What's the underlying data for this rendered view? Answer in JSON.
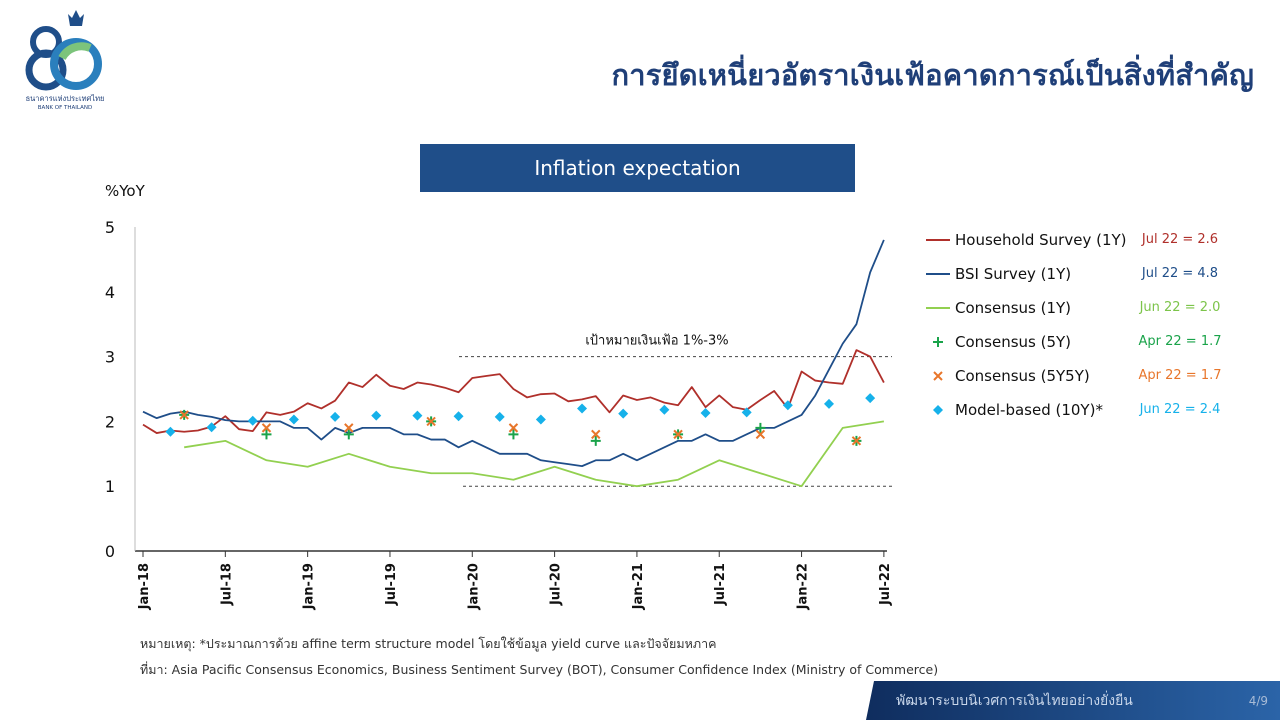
{
  "header": {
    "title": "การยึดเหนี่ยวอัตราเงินเฟ้อคาดการณ์เป็นสิ่งที่สำคัญ",
    "logo_text_th": "ธนาคารแห่งประเทศไทย",
    "logo_text_en": "BANK OF THAILAND"
  },
  "chart_title": "Inflation expectation",
  "chart_data": {
    "type": "line",
    "ylabel": "%YoY",
    "ylim": [
      0,
      5
    ],
    "yticks": [
      0,
      1,
      2,
      3,
      4,
      5
    ],
    "x_tick_labels": [
      "Jan-18",
      "Jul-18",
      "Jan-19",
      "Jul-19",
      "Jan-20",
      "Jul-20",
      "Jan-21",
      "Jul-21",
      "Jan-22",
      "Jul-22"
    ],
    "target_band_label": "เป้าหมายเงินเฟ้อ 1%-3%",
    "target_band": [
      1,
      3
    ],
    "series": [
      {
        "name": "Household Survey (1Y)",
        "kind": "line",
        "color": "#b0302b",
        "annotation": "Jul 22 = 2.6",
        "start_month": 0,
        "values": [
          1.95,
          1.82,
          1.86,
          1.84,
          1.86,
          1.92,
          2.08,
          1.88,
          1.85,
          2.14,
          2.1,
          2.15,
          2.28,
          2.2,
          2.32,
          2.6,
          2.53,
          2.72,
          2.55,
          2.5,
          2.6,
          2.57,
          2.52,
          2.45,
          2.67,
          2.7,
          2.73,
          2.5,
          2.37,
          2.42,
          2.43,
          2.31,
          2.34,
          2.39,
          2.14,
          2.4,
          2.33,
          2.37,
          2.29,
          2.25,
          2.53,
          2.22,
          2.4,
          2.22,
          2.18,
          2.33,
          2.47,
          2.2,
          2.77,
          2.63,
          2.6,
          2.58,
          3.1,
          3.0,
          2.6
        ]
      },
      {
        "name": "BSI Survey (1Y)",
        "kind": "line",
        "color": "#1f4e89",
        "annotation": "Jul 22 = 4.8",
        "start_month": 0,
        "values": [
          2.15,
          2.05,
          2.12,
          2.15,
          2.1,
          2.07,
          2.02,
          2.0,
          2.0,
          2.0,
          2.0,
          1.9,
          1.9,
          1.72,
          1.9,
          1.82,
          1.9,
          1.9,
          1.9,
          1.8,
          1.8,
          1.72,
          1.72,
          1.6,
          1.7,
          1.6,
          1.5,
          1.5,
          1.5,
          1.4,
          1.37,
          1.34,
          1.31,
          1.4,
          1.4,
          1.5,
          1.4,
          1.5,
          1.6,
          1.7,
          1.7,
          1.8,
          1.7,
          1.7,
          1.8,
          1.9,
          1.9,
          2.0,
          2.1,
          2.4,
          2.8,
          3.2,
          3.5,
          4.3,
          4.8
        ]
      },
      {
        "name": "Consensus (1Y)",
        "kind": "line",
        "color": "#92d050",
        "annotation": "Jun 22 = 2.0",
        "points": [
          [
            3,
            1.6
          ],
          [
            6,
            1.7
          ],
          [
            9,
            1.4
          ],
          [
            12,
            1.3
          ],
          [
            15,
            1.5
          ],
          [
            18,
            1.3
          ],
          [
            21,
            1.2
          ],
          [
            24,
            1.2
          ],
          [
            27,
            1.1
          ],
          [
            30,
            1.3
          ],
          [
            33,
            1.1
          ],
          [
            36,
            1.0
          ],
          [
            39,
            1.1
          ],
          [
            42,
            1.4
          ],
          [
            45,
            1.2
          ],
          [
            48,
            1.0
          ],
          [
            51,
            1.9
          ],
          [
            54,
            2.0
          ]
        ]
      },
      {
        "name": "Consensus (5Y)",
        "kind": "plus",
        "color": "#1aa34a",
        "annotation": "Apr 22 = 1.7",
        "points": [
          [
            3,
            2.1
          ],
          [
            9,
            1.8
          ],
          [
            15,
            1.8
          ],
          [
            21,
            2.0
          ],
          [
            27,
            1.8
          ],
          [
            33,
            1.7
          ],
          [
            39,
            1.8
          ],
          [
            45,
            1.9
          ],
          [
            52,
            1.7
          ]
        ]
      },
      {
        "name": "Consensus (5Y5Y)",
        "kind": "cross",
        "color": "#e8762b",
        "annotation": "Apr 22 = 1.7",
        "points": [
          [
            3,
            2.1
          ],
          [
            9,
            1.9
          ],
          [
            15,
            1.9
          ],
          [
            21,
            2.0
          ],
          [
            27,
            1.9
          ],
          [
            33,
            1.8
          ],
          [
            39,
            1.8
          ],
          [
            45,
            1.8
          ],
          [
            52,
            1.7
          ]
        ]
      },
      {
        "name": "Model-based (10Y)*",
        "kind": "diamond",
        "color": "#16b1ea",
        "annotation": "Jun 22 = 2.4",
        "points": [
          [
            2,
            1.84
          ],
          [
            5,
            1.91
          ],
          [
            8,
            2.01
          ],
          [
            11,
            2.03
          ],
          [
            14,
            2.07
          ],
          [
            17,
            2.09
          ],
          [
            20,
            2.09
          ],
          [
            23,
            2.08
          ],
          [
            26,
            2.07
          ],
          [
            29,
            2.03
          ],
          [
            32,
            2.2
          ],
          [
            35,
            2.12
          ],
          [
            38,
            2.18
          ],
          [
            41,
            2.13
          ],
          [
            44,
            2.14
          ],
          [
            47,
            2.25
          ],
          [
            50,
            2.27
          ],
          [
            53,
            2.36
          ]
        ]
      }
    ]
  },
  "notes": {
    "remark": "หมายเหตุ: *ประมาณการด้วย affine term structure model โดยใช้ข้อมูล yield curve และปัจจัยมหภาค",
    "source": "ที่มา: Asia Pacific Consensus Economics, Business Sentiment Survey (BOT), Consumer Confidence Index (Ministry of Commerce)"
  },
  "footer": {
    "text": "พัฒนาระบบนิเวศการเงินไทยอย่างยั่งยืน",
    "page": "4/9"
  },
  "colors": {
    "brand": "#1f4e89",
    "title": "#1f3f78"
  }
}
